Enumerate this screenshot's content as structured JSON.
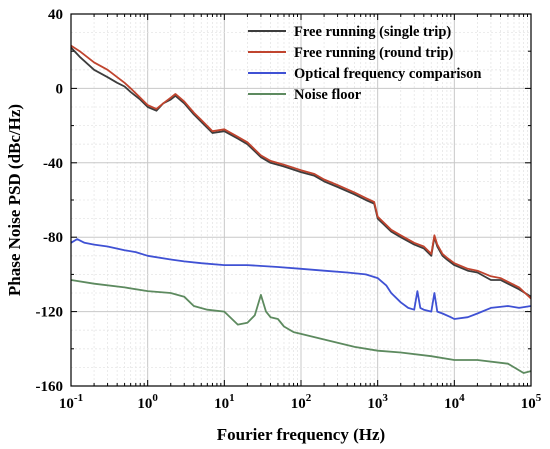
{
  "chart_data": {
    "type": "line",
    "title": "",
    "xlabel": "Fourier frequency (Hz)",
    "ylabel": "Phase Noise PSD (dBc/Hz)",
    "x_scale": "log",
    "xlim": [
      0.1,
      100000
    ],
    "ylim": [
      -160,
      40
    ],
    "x_ticks": [
      {
        "value": 0.1,
        "base": "10",
        "exp": "-1"
      },
      {
        "value": 1,
        "base": "10",
        "exp": "0"
      },
      {
        "value": 10,
        "base": "10",
        "exp": "1"
      },
      {
        "value": 100,
        "base": "10",
        "exp": "2"
      },
      {
        "value": 1000,
        "base": "10",
        "exp": "3"
      },
      {
        "value": 10000,
        "base": "10",
        "exp": "4"
      },
      {
        "value": 100000,
        "base": "10",
        "exp": "5"
      }
    ],
    "y_ticks": [
      -160,
      -120,
      -80,
      -40,
      0,
      40
    ],
    "grid": true,
    "legend_position": "top-right",
    "series": [
      {
        "name": "Free running (single trip)",
        "color": "#3d3d3d",
        "x": [
          0.1,
          0.13,
          0.2,
          0.3,
          0.4,
          0.5,
          0.6,
          0.8,
          1,
          1.3,
          1.6,
          2,
          2.3,
          3,
          4,
          5,
          7,
          10,
          15,
          20,
          30,
          40,
          60,
          100,
          150,
          200,
          300,
          500,
          700,
          900,
          1000,
          1500,
          2000,
          3000,
          4000,
          5000,
          5500,
          6000,
          7000,
          8000,
          10000,
          15000,
          20000,
          30000,
          40000,
          50000,
          70000,
          100000
        ],
        "y": [
          22,
          17,
          10,
          6,
          3,
          1,
          -2,
          -6,
          -10,
          -12,
          -8,
          -6,
          -4,
          -8,
          -14,
          -18,
          -24,
          -23,
          -27,
          -30,
          -37,
          -40,
          -42,
          -45,
          -47,
          -50,
          -53,
          -57,
          -60,
          -62,
          -70,
          -77,
          -80,
          -84,
          -86,
          -90,
          -80,
          -85,
          -90,
          -92,
          -95,
          -98,
          -99,
          -103,
          -103,
          -105,
          -108,
          -112
        ]
      },
      {
        "name": "Free running (round trip)",
        "color": "#c0442e",
        "x": [
          0.1,
          0.13,
          0.2,
          0.3,
          0.4,
          0.5,
          0.6,
          0.8,
          1,
          1.3,
          1.6,
          2,
          2.3,
          3,
          4,
          5,
          7,
          10,
          15,
          20,
          30,
          40,
          60,
          100,
          150,
          200,
          300,
          500,
          700,
          900,
          1000,
          1500,
          2000,
          3000,
          4000,
          5000,
          5500,
          6000,
          7000,
          8000,
          10000,
          15000,
          20000,
          30000,
          40000,
          50000,
          70000,
          100000
        ],
        "y": [
          23,
          20,
          14,
          10,
          6,
          3,
          0,
          -5,
          -9,
          -11,
          -8,
          -5,
          -3,
          -7,
          -13,
          -17,
          -23,
          -22,
          -26,
          -29,
          -36,
          -39,
          -41,
          -44,
          -46,
          -49,
          -52,
          -56,
          -59,
          -61,
          -69,
          -76,
          -79,
          -83,
          -85,
          -89,
          -79,
          -84,
          -89,
          -91,
          -94,
          -97,
          -98,
          -101,
          -102,
          -104,
          -107,
          -113
        ]
      },
      {
        "name": "Optical frequency comparison",
        "color": "#3f51d4",
        "x": [
          0.1,
          0.12,
          0.15,
          0.2,
          0.3,
          0.5,
          0.7,
          1,
          2,
          3,
          5,
          10,
          20,
          50,
          100,
          200,
          400,
          700,
          1000,
          1300,
          1500,
          2000,
          2500,
          3000,
          3300,
          3600,
          4000,
          5000,
          5500,
          6000,
          7000,
          9000,
          10000,
          15000,
          20000,
          30000,
          50000,
          70000,
          100000
        ],
        "y": [
          -83,
          -81,
          -83,
          -84,
          -85,
          -87,
          -88,
          -90,
          -92,
          -93,
          -94,
          -95,
          -95,
          -96,
          -97,
          -98,
          -99,
          -100,
          -102,
          -106,
          -110,
          -115,
          -118,
          -119,
          -109,
          -118,
          -119,
          -120,
          -110,
          -120,
          -121,
          -123,
          -124,
          -123,
          -121,
          -118,
          -117,
          -118,
          -117
        ]
      },
      {
        "name": "Noise floor",
        "color": "#5d8a5f",
        "x": [
          0.1,
          0.2,
          0.5,
          1,
          2,
          3,
          4,
          6,
          10,
          15,
          20,
          25,
          30,
          35,
          40,
          50,
          60,
          80,
          100,
          200,
          500,
          1000,
          2000,
          5000,
          10000,
          20000,
          50000,
          80000,
          100000
        ],
        "y": [
          -103,
          -105,
          -107,
          -109,
          -110,
          -112,
          -117,
          -119,
          -120,
          -127,
          -126,
          -122,
          -111,
          -120,
          -123,
          -124,
          -128,
          -131,
          -132,
          -135,
          -139,
          -141,
          -142,
          -144,
          -146,
          -146,
          -148,
          -153,
          -152
        ]
      }
    ]
  }
}
